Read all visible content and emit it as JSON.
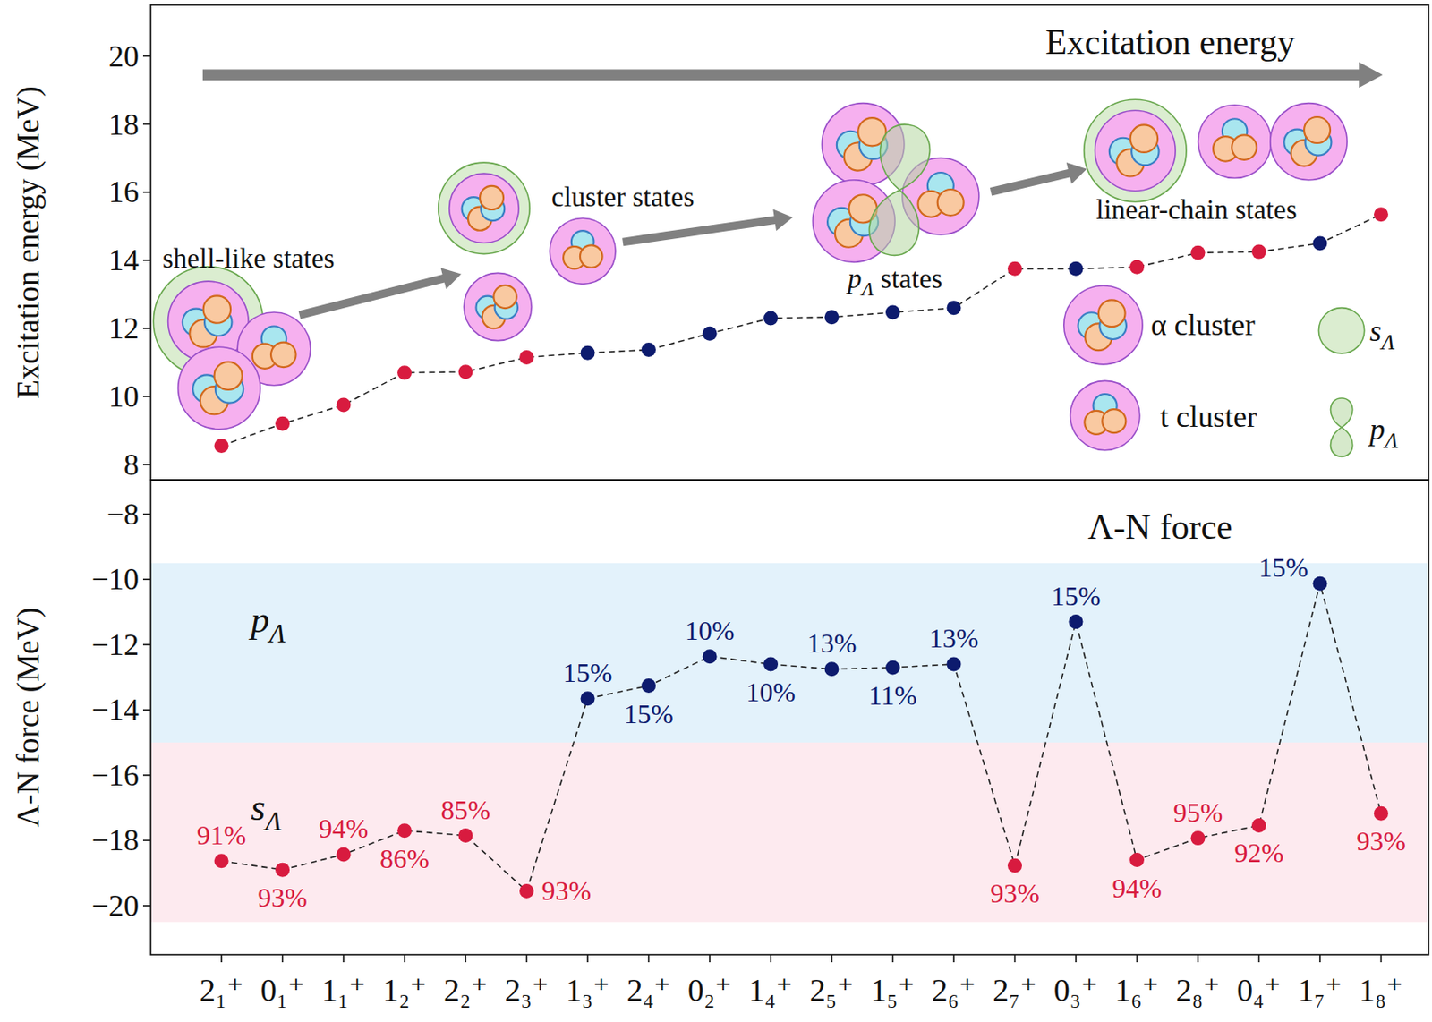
{
  "chart_data": [
    {
      "type": "line",
      "y_label": "Excitation energy (MeV)",
      "categories": [
        "2₁⁺",
        "0₁⁺",
        "1₁⁺",
        "1₂⁺",
        "2₂⁺",
        "2₃⁺",
        "1₃⁺",
        "2₄⁺",
        "0₂⁺",
        "1₄⁺",
        "2₅⁺",
        "1₅⁺",
        "2₆⁺",
        "2₇⁺",
        "0₃⁺",
        "1₆⁺",
        "2₈⁺",
        "0₄⁺",
        "1₇⁺",
        "1₈⁺"
      ],
      "series": [
        {
          "values": [
            8.55,
            9.2,
            9.75,
            10.7,
            10.72,
            11.15,
            11.28,
            11.37,
            11.85,
            12.3,
            12.33,
            12.47,
            12.6,
            13.75,
            13.75,
            13.8,
            14.22,
            14.25,
            14.5,
            15.35
          ],
          "colors": [
            "#d81b3f",
            "#d81b3f",
            "#d81b3f",
            "#d81b3f",
            "#d81b3f",
            "#d81b3f",
            "#0d1b6e",
            "#0d1b6e",
            "#0d1b6e",
            "#0d1b6e",
            "#0d1b6e",
            "#0d1b6e",
            "#0d1b6e",
            "#d81b3f",
            "#0d1b6e",
            "#d81b3f",
            "#d81b3f",
            "#d81b3f",
            "#0d1b6e",
            "#d81b3f"
          ],
          "color": "#222222",
          "line_style": "dashed",
          "marker": "circle"
        }
      ],
      "ylim": [
        7.55,
        21.5
      ],
      "yticks": [
        8,
        10,
        12,
        14,
        16,
        18,
        20
      ],
      "tick_labels": "y",
      "annotations": [
        {
          "text": "Excitation energy"
        },
        {
          "text": "shell-like states"
        },
        {
          "text": "cluster states"
        },
        {
          "text": "p",
          "sub": "Λ",
          "after": " states"
        },
        {
          "text": "linear-chain states"
        },
        {
          "text": "α cluster"
        },
        {
          "text": "t cluster"
        },
        {
          "text": "s",
          "sub": "Λ"
        },
        {
          "text": "p",
          "sub": "Λ"
        }
      ]
    },
    {
      "type": "line",
      "title": "Λ-N force",
      "y_label": "Λ-N force (MeV)",
      "categories": [
        "2₁⁺",
        "0₁⁺",
        "1₁⁺",
        "1₂⁺",
        "2₂⁺",
        "2₃⁺",
        "1₃⁺",
        "2₄⁺",
        "0₂⁺",
        "1₄⁺",
        "2₅⁺",
        "1₅⁺",
        "2₆⁺",
        "2₇⁺",
        "0₃⁺",
        "1₆⁺",
        "2₈⁺",
        "0₄⁺",
        "1₇⁺",
        "1₈⁺"
      ],
      "series": [
        {
          "values": [
            -18.63,
            -18.9,
            -18.43,
            -17.7,
            -17.85,
            -19.55,
            -13.65,
            -13.26,
            -12.36,
            -12.6,
            -12.75,
            -12.7,
            -12.6,
            -18.77,
            -11.3,
            -18.6,
            -17.93,
            -17.54,
            -10.13,
            -17.17
          ],
          "colors": [
            "#d81b3f",
            "#d81b3f",
            "#d81b3f",
            "#d81b3f",
            "#d81b3f",
            "#d81b3f",
            "#0d1b6e",
            "#0d1b6e",
            "#0d1b6e",
            "#0d1b6e",
            "#0d1b6e",
            "#0d1b6e",
            "#0d1b6e",
            "#d81b3f",
            "#0d1b6e",
            "#d81b3f",
            "#d81b3f",
            "#d81b3f",
            "#0d1b6e",
            "#d81b3f"
          ],
          "point_labels": [
            "91%",
            "93%",
            "94%",
            "86%",
            "85%",
            "93%",
            "15%",
            "15%",
            "10%",
            "10%",
            "13%",
            "11%",
            "13%",
            "93%",
            "15%",
            "94%",
            "95%",
            "92%",
            "15%",
            "93%"
          ],
          "color": "#222222",
          "line_style": "dashed",
          "marker": "circle"
        }
      ],
      "ylim": [
        -21.5,
        -6.95
      ],
      "yticks": [
        {
          "value": -8,
          "label": "−8"
        },
        {
          "value": -10,
          "label": "−10"
        },
        {
          "value": -12,
          "label": "−12"
        },
        {
          "value": -14,
          "label": "−14"
        },
        {
          "value": -16,
          "label": "−16"
        },
        {
          "value": -18,
          "label": "−18"
        },
        {
          "value": -20,
          "label": "−20"
        }
      ],
      "bands": [
        {
          "range": [
            -15,
            -9.5
          ],
          "color": "#e3f2fb",
          "label": {
            "text": "p",
            "sub": "Λ"
          }
        },
        {
          "range": [
            -20.5,
            -15
          ],
          "color": "#fdeaef",
          "label": {
            "text": "s",
            "sub": "Λ"
          }
        }
      ]
    }
  ]
}
